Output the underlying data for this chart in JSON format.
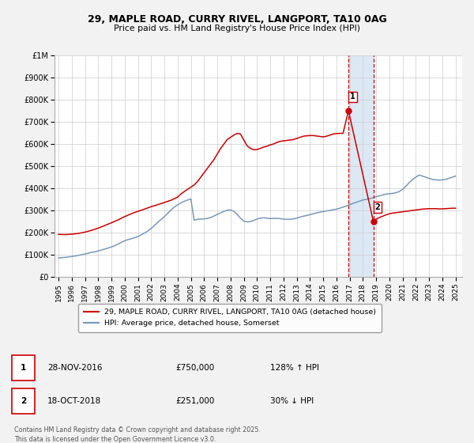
{
  "title": "29, MAPLE ROAD, CURRY RIVEL, LANGPORT, TA10 0AG",
  "subtitle": "Price paid vs. HM Land Registry's House Price Index (HPI)",
  "background_color": "#f2f2f2",
  "plot_bg_color": "#ffffff",
  "red_color": "#cc0000",
  "blue_color": "#7799bb",
  "shade_color": "#dde8f5",
  "ylim": [
    0,
    1000000
  ],
  "ytick_labels": [
    "£0",
    "£100K",
    "£200K",
    "£300K",
    "£400K",
    "£500K",
    "£600K",
    "£700K",
    "£800K",
    "£900K",
    "£1M"
  ],
  "ytick_vals": [
    0,
    100000,
    200000,
    300000,
    400000,
    500000,
    600000,
    700000,
    800000,
    900000,
    1000000
  ],
  "xlim_start": 1994.7,
  "xlim_end": 2025.5,
  "xticks": [
    1995,
    1996,
    1997,
    1998,
    1999,
    2000,
    2001,
    2002,
    2003,
    2004,
    2005,
    2006,
    2007,
    2008,
    2009,
    2010,
    2011,
    2012,
    2013,
    2014,
    2015,
    2016,
    2017,
    2018,
    2019,
    2020,
    2021,
    2022,
    2023,
    2024,
    2025
  ],
  "sale1_x": 2016.91,
  "sale1_y": 750000,
  "sale2_x": 2018.79,
  "sale2_y": 251000,
  "vline1_x": 2016.91,
  "vline2_x": 2018.79,
  "legend_line1": "29, MAPLE ROAD, CURRY RIVEL, LANGPORT, TA10 0AG (detached house)",
  "legend_line2": "HPI: Average price, detached house, Somerset",
  "table_row1": [
    "1",
    "28-NOV-2016",
    "£750,000",
    "128% ↑ HPI"
  ],
  "table_row2": [
    "2",
    "18-OCT-2018",
    "£251,000",
    "30% ↓ HPI"
  ],
  "footer": "Contains HM Land Registry data © Crown copyright and database right 2025.\nThis data is licensed under the Open Government Licence v3.0.",
  "hpi_x": [
    1995.0,
    1995.25,
    1995.5,
    1995.75,
    1996.0,
    1996.25,
    1996.5,
    1996.75,
    1997.0,
    1997.25,
    1997.5,
    1997.75,
    1998.0,
    1998.25,
    1998.5,
    1998.75,
    1999.0,
    1999.25,
    1999.5,
    1999.75,
    2000.0,
    2000.25,
    2000.5,
    2000.75,
    2001.0,
    2001.25,
    2001.5,
    2001.75,
    2002.0,
    2002.25,
    2002.5,
    2002.75,
    2003.0,
    2003.25,
    2003.5,
    2003.75,
    2004.0,
    2004.25,
    2004.5,
    2004.75,
    2005.0,
    2005.25,
    2005.5,
    2005.75,
    2006.0,
    2006.25,
    2006.5,
    2006.75,
    2007.0,
    2007.25,
    2007.5,
    2007.75,
    2008.0,
    2008.25,
    2008.5,
    2008.75,
    2009.0,
    2009.25,
    2009.5,
    2009.75,
    2010.0,
    2010.25,
    2010.5,
    2010.75,
    2011.0,
    2011.25,
    2011.5,
    2011.75,
    2012.0,
    2012.25,
    2012.5,
    2012.75,
    2013.0,
    2013.25,
    2013.5,
    2013.75,
    2014.0,
    2014.25,
    2014.5,
    2014.75,
    2015.0,
    2015.25,
    2015.5,
    2015.75,
    2016.0,
    2016.25,
    2016.5,
    2016.75,
    2017.0,
    2017.25,
    2017.5,
    2017.75,
    2018.0,
    2018.25,
    2018.5,
    2018.75,
    2019.0,
    2019.25,
    2019.5,
    2019.75,
    2020.0,
    2020.25,
    2020.5,
    2020.75,
    2021.0,
    2021.25,
    2021.5,
    2021.75,
    2022.0,
    2022.25,
    2022.5,
    2022.75,
    2023.0,
    2023.25,
    2023.5,
    2023.75,
    2024.0,
    2024.25,
    2024.5,
    2024.75,
    2025.0
  ],
  "hpi_y": [
    85000,
    87000,
    88000,
    90000,
    92000,
    94000,
    97000,
    100000,
    103000,
    107000,
    111000,
    113000,
    117000,
    121000,
    126000,
    130000,
    135000,
    141000,
    148000,
    156000,
    163000,
    168000,
    172000,
    177000,
    182000,
    190000,
    198000,
    207000,
    218000,
    232000,
    246000,
    259000,
    272000,
    287000,
    302000,
    315000,
    325000,
    334000,
    341000,
    347000,
    352000,
    256000,
    260000,
    261000,
    262000,
    264000,
    268000,
    275000,
    282000,
    289000,
    296000,
    301000,
    302000,
    296000,
    282000,
    265000,
    252000,
    248000,
    250000,
    255000,
    261000,
    265000,
    267000,
    265000,
    263000,
    264000,
    264000,
    263000,
    261000,
    260000,
    260000,
    262000,
    265000,
    270000,
    274000,
    277000,
    281000,
    285000,
    289000,
    292000,
    295000,
    298000,
    300000,
    303000,
    306000,
    310000,
    315000,
    320000,
    326000,
    332000,
    337000,
    342000,
    347000,
    350000,
    353000,
    357000,
    362000,
    366000,
    370000,
    374000,
    375000,
    377000,
    380000,
    385000,
    395000,
    410000,
    425000,
    440000,
    450000,
    460000,
    455000,
    450000,
    445000,
    440000,
    438000,
    437000,
    438000,
    440000,
    445000,
    450000,
    455000
  ],
  "red_x": [
    1995.0,
    1995.5,
    1996.0,
    1996.5,
    1997.0,
    1997.5,
    1998.0,
    1998.5,
    1999.0,
    1999.5,
    2000.0,
    2000.5,
    2001.0,
    2001.5,
    2002.0,
    2002.5,
    2003.0,
    2003.5,
    2004.0,
    2004.25,
    2004.5,
    2004.75,
    2005.0,
    2005.25,
    2005.5,
    2005.75,
    2006.0,
    2006.25,
    2006.5,
    2006.75,
    2007.0,
    2007.25,
    2007.5,
    2007.75,
    2008.0,
    2008.25,
    2008.5,
    2008.75,
    2009.0,
    2009.25,
    2009.5,
    2009.75,
    2010.0,
    2010.25,
    2010.5,
    2010.75,
    2011.0,
    2011.25,
    2011.5,
    2011.75,
    2012.0,
    2012.25,
    2012.5,
    2012.75,
    2013.0,
    2013.25,
    2013.5,
    2013.75,
    2014.0,
    2014.25,
    2014.5,
    2014.75,
    2015.0,
    2015.25,
    2015.5,
    2015.75,
    2016.0,
    2016.25,
    2016.5,
    2016.91,
    2018.79,
    2019.0,
    2019.25,
    2019.5,
    2019.75,
    2020.0,
    2020.25,
    2020.5,
    2020.75,
    2021.0,
    2021.25,
    2021.5,
    2021.75,
    2022.0,
    2022.25,
    2022.5,
    2022.75,
    2023.0,
    2023.25,
    2023.5,
    2023.75,
    2024.0,
    2024.25,
    2024.5,
    2024.75,
    2025.0
  ],
  "red_y": [
    192000,
    191000,
    193000,
    196000,
    202000,
    210000,
    220000,
    232000,
    244000,
    257000,
    272000,
    285000,
    296000,
    306000,
    317000,
    326000,
    336000,
    346000,
    360000,
    374000,
    385000,
    395000,
    405000,
    415000,
    430000,
    450000,
    470000,
    490000,
    510000,
    530000,
    555000,
    580000,
    600000,
    620000,
    630000,
    640000,
    648000,
    645000,
    618000,
    592000,
    580000,
    574000,
    575000,
    580000,
    586000,
    590000,
    596000,
    600000,
    607000,
    612000,
    614000,
    616000,
    618000,
    620000,
    625000,
    630000,
    635000,
    637000,
    638000,
    638000,
    636000,
    634000,
    632000,
    635000,
    640000,
    645000,
    647000,
    648000,
    648000,
    750000,
    251000,
    260000,
    268000,
    274000,
    280000,
    285000,
    288000,
    290000,
    292000,
    294000,
    296000,
    298000,
    300000,
    302000,
    304000,
    306000,
    307000,
    308000,
    308000,
    308000,
    307000,
    307000,
    308000,
    309000,
    310000,
    310000
  ]
}
